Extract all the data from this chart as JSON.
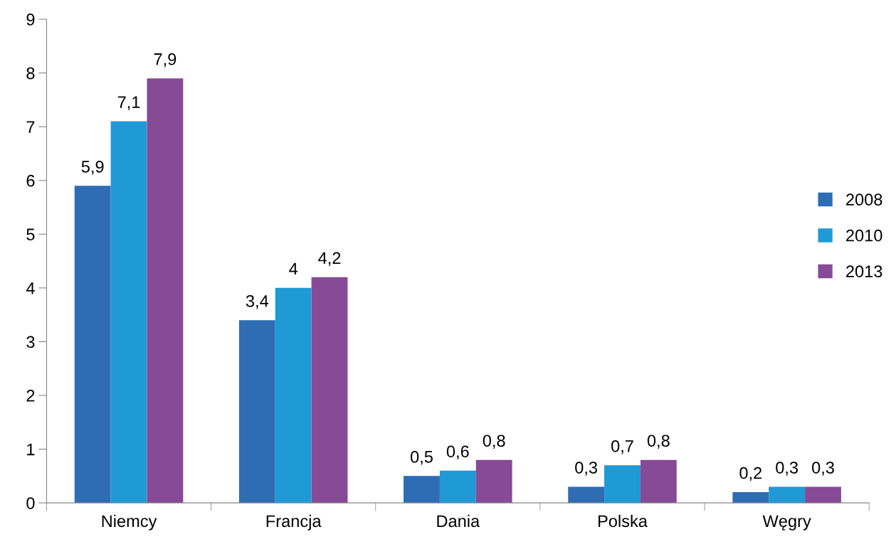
{
  "chart_data": {
    "type": "bar",
    "categories": [
      "Niemcy",
      "Francja",
      "Dania",
      "Polska",
      "Węgry"
    ],
    "series": [
      {
        "name": "2008",
        "color": "#2e6db4",
        "values": [
          5.9,
          3.4,
          0.5,
          0.3,
          0.2
        ],
        "value_labels": [
          "5,9",
          "3,4",
          "0,5",
          "0,3",
          "0,2"
        ]
      },
      {
        "name": "2010",
        "color": "#1f9ad6",
        "values": [
          7.1,
          4,
          0.6,
          0.7,
          0.3
        ],
        "value_labels": [
          "7,1",
          "4",
          "0,6",
          "0,7",
          "0,3"
        ]
      },
      {
        "name": "2013",
        "color": "#874a97",
        "values": [
          7.9,
          4.2,
          0.8,
          0.8,
          0.3
        ],
        "value_labels": [
          "7,9",
          "4,2",
          "0,8",
          "0,8",
          "0,3"
        ]
      }
    ],
    "ylim": [
      0,
      9
    ],
    "yticks": [
      0,
      1,
      2,
      3,
      4,
      5,
      6,
      7,
      8,
      9
    ],
    "grid": false,
    "legend": "right"
  }
}
